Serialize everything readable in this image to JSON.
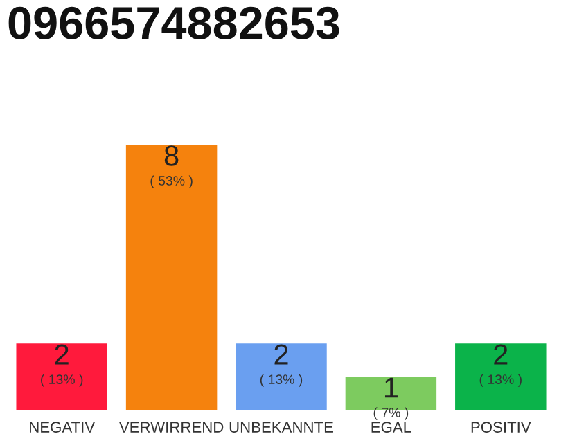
{
  "chart_data": {
    "type": "bar",
    "title": "0966574882653",
    "categories": [
      "NEGATIV",
      "VERWIRREND",
      "UNBEKANNTE",
      "EGAL",
      "POSITIV"
    ],
    "values": [
      2,
      8,
      2,
      1,
      2
    ],
    "colors": [
      "#ff1a3c",
      "#f5820d",
      "#6a9ff0",
      "#7dcb5f",
      "#0bb34a"
    ],
    "data_labels": true,
    "annotations": [
      {
        "text": "( 13% )",
        "x": "NEGATIV",
        "y": 2
      },
      {
        "text": "( 53% )",
        "x": "VERWIRREND",
        "y": 8
      },
      {
        "text": "( 13% )",
        "x": "UNBEKANNTE",
        "y": 2
      },
      {
        "text": "( 7% )",
        "x": "EGAL",
        "y": 1
      },
      {
        "text": "( 13% )",
        "x": "POSITIV",
        "y": 2
      }
    ],
    "grid": false,
    "legend": false
  }
}
